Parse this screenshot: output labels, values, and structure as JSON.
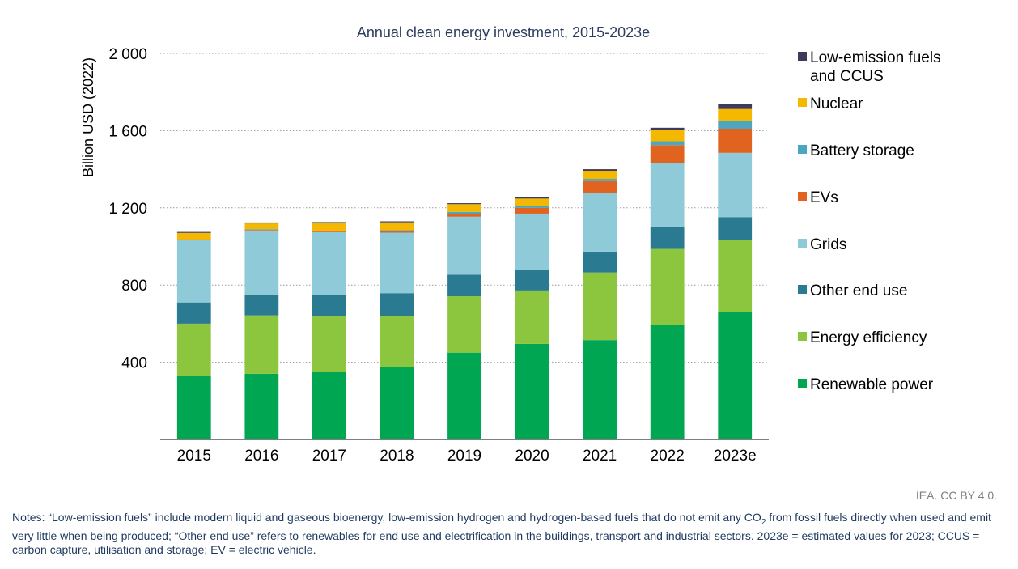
{
  "chart_data": {
    "type": "bar",
    "stacked": true,
    "title": "Annual clean energy investment, 2015-2023e",
    "xlabel": "",
    "ylabel": "Billion USD (2022)",
    "ylim": [
      0,
      2000
    ],
    "yticks": [
      400,
      800,
      1200,
      1600,
      2000
    ],
    "ytick_labels": [
      "400",
      "800",
      "1 200",
      "1 600",
      "2 000"
    ],
    "grid": true,
    "legend_position": "right",
    "categories": [
      "2015",
      "2016",
      "2017",
      "2018",
      "2019",
      "2020",
      "2021",
      "2022",
      "2023e"
    ],
    "series": [
      {
        "name": "Renewable power",
        "legend_label": "Renewable power",
        "color": "#00a651",
        "values": [
          330,
          340,
          350,
          375,
          450,
          495,
          515,
          595,
          659
        ]
      },
      {
        "name": "Energy efficiency",
        "legend_label": "Energy efficiency",
        "color": "#8cc63f",
        "values": [
          270,
          303,
          287,
          265,
          292,
          277,
          350,
          392,
          375
        ]
      },
      {
        "name": "Other end use",
        "legend_label": "Other end use",
        "color": "#2a7a91",
        "values": [
          110,
          105,
          112,
          118,
          112,
          105,
          108,
          112,
          118
        ]
      },
      {
        "name": "Grids",
        "legend_label": "Grids",
        "color": "#8fcad8",
        "values": [
          325,
          335,
          325,
          313,
          300,
          293,
          305,
          331,
          333
        ]
      },
      {
        "name": "EVs",
        "legend_label": "EVs",
        "color": "#e0631f",
        "values": [
          2,
          3,
          4,
          8,
          15,
          30,
          60,
          95,
          125
        ]
      },
      {
        "name": "Battery storage",
        "legend_label": "Battery storage",
        "color": "#4da6bf",
        "values": [
          0,
          3,
          4,
          6,
          10,
          10,
          12,
          20,
          40
        ]
      },
      {
        "name": "Nuclear",
        "legend_label": "Nuclear",
        "color": "#f5b800",
        "values": [
          33,
          30,
          40,
          40,
          40,
          38,
          42,
          58,
          62
        ]
      },
      {
        "name": "Low-emission fuels and CCUS",
        "legend_label": [
          "Low-emission fuels",
          "and CCUS"
        ],
        "color": "#3f3a5c",
        "values": [
          5,
          5,
          4,
          5,
          5,
          7,
          8,
          12,
          25
        ]
      }
    ]
  },
  "source_text": "IEA. CC BY 4.0.",
  "notes_pre": "Notes: “Low-emission fuels” include modern liquid and gaseous bioenergy, low-emission hydrogen and hydrogen-based fuels that do not emit any CO",
  "notes_sub": "2",
  "notes_post": " from fossil fuels directly when used and emit very little when being produced; “Other end use” refers to renewables for end use and electrification in the buildings, transport and industrial sectors. 2023e = estimated values for 2023; CCUS = carbon capture, utilisation and storage; EV = electric vehicle."
}
